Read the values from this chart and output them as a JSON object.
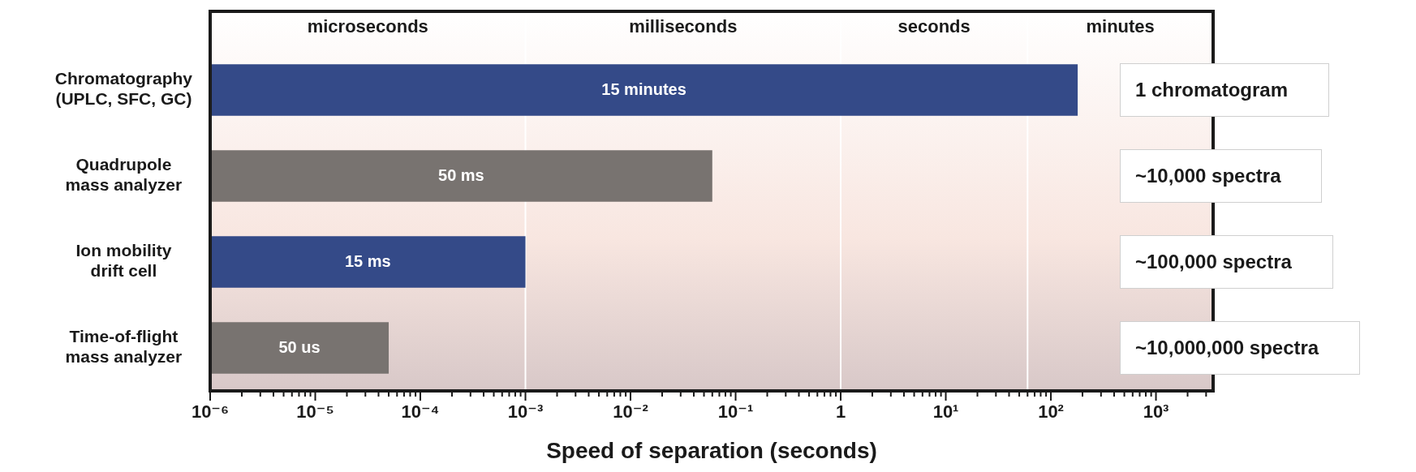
{
  "chart_data": {
    "type": "bar",
    "orientation": "horizontal",
    "log": "x",
    "categories": [
      "Chromatography\n(UPLC, SFC, GC)",
      "Quadrupole\nmass analyzer",
      "Ion mobility\ndrift cell",
      "Time-of-flight\nmass analyzer"
    ],
    "values": [
      180,
      0.06,
      0.001,
      5e-05
    ],
    "colors": [
      "#344a88",
      "#787370",
      "#344a88",
      "#787370"
    ],
    "xlabel": "Speed of separation (seconds)",
    "xlim": [
      1e-06,
      3500
    ],
    "xticks": [
      {
        "value": 1e-06,
        "label": "10⁻⁶"
      },
      {
        "value": 2e-06,
        "label": null
      },
      {
        "value": 3e-06,
        "label": null
      },
      {
        "value": 4e-06,
        "label": null
      },
      {
        "value": 5e-06,
        "label": null
      },
      {
        "value": 6e-06,
        "label": null
      },
      {
        "value": 7e-06,
        "label": null
      },
      {
        "value": 8e-06,
        "label": null
      },
      {
        "value": 9e-06,
        "label": null
      },
      {
        "value": 1e-05,
        "label": "10⁻⁵"
      },
      {
        "value": 2e-05,
        "label": null
      },
      {
        "value": 3e-05,
        "label": null
      },
      {
        "value": 4e-05,
        "label": null
      },
      {
        "value": 5e-05,
        "label": null
      },
      {
        "value": 6e-05,
        "label": null
      },
      {
        "value": 7e-05,
        "label": null
      },
      {
        "value": 8e-05,
        "label": null
      },
      {
        "value": 9e-05,
        "label": null
      },
      {
        "value": 0.0001,
        "label": "10⁻⁴"
      },
      {
        "value": 0.0002,
        "label": null
      },
      {
        "value": 0.0003,
        "label": null
      },
      {
        "value": 0.0004,
        "label": null
      },
      {
        "value": 0.0005,
        "label": null
      },
      {
        "value": 0.0006,
        "label": null
      },
      {
        "value": 0.0007,
        "label": null
      },
      {
        "value": 0.0008,
        "label": null
      },
      {
        "value": 0.0009,
        "label": null
      },
      {
        "value": 0.001,
        "label": "10⁻³"
      },
      {
        "value": 0.002,
        "label": null
      },
      {
        "value": 0.003,
        "label": null
      },
      {
        "value": 0.004,
        "label": null
      },
      {
        "value": 0.005,
        "label": null
      },
      {
        "value": 0.006,
        "label": null
      },
      {
        "value": 0.007,
        "label": null
      },
      {
        "value": 0.008,
        "label": null
      },
      {
        "value": 0.009,
        "label": null
      },
      {
        "value": 0.01,
        "label": "10⁻²"
      },
      {
        "value": 0.02,
        "label": null
      },
      {
        "value": 0.03,
        "label": null
      },
      {
        "value": 0.04,
        "label": null
      },
      {
        "value": 0.05,
        "label": null
      },
      {
        "value": 0.06,
        "label": null
      },
      {
        "value": 0.07,
        "label": null
      },
      {
        "value": 0.08,
        "label": null
      },
      {
        "value": 0.09,
        "label": null
      },
      {
        "value": 0.1,
        "label": "10⁻¹"
      },
      {
        "value": 0.2,
        "label": null
      },
      {
        "value": 0.3,
        "label": null
      },
      {
        "value": 0.4,
        "label": null
      },
      {
        "value": 0.5,
        "label": null
      },
      {
        "value": 0.6,
        "label": null
      },
      {
        "value": 0.7,
        "label": null
      },
      {
        "value": 0.8,
        "label": null
      },
      {
        "value": 0.9,
        "label": null
      },
      1,
      {
        "value": 2,
        "label": null
      },
      {
        "value": 3,
        "label": null
      },
      {
        "value": 4,
        "label": null
      },
      {
        "value": 5,
        "label": null
      },
      {
        "value": 6,
        "label": null
      },
      {
        "value": 7,
        "label": null
      },
      {
        "value": 8,
        "label": null
      },
      {
        "value": 9,
        "label": null
      },
      {
        "value": 10,
        "label": "10¹"
      },
      {
        "value": 20,
        "label": null
      },
      {
        "value": 30,
        "label": null
      },
      {
        "value": 40,
        "label": null
      },
      {
        "value": 50,
        "label": null
      },
      {
        "value": 60,
        "label": null
      },
      {
        "value": 70,
        "label": null
      },
      {
        "value": 80,
        "label": null
      },
      {
        "value": 90,
        "label": null
      },
      {
        "value": 100,
        "label": "10²"
      },
      {
        "value": 200,
        "label": null
      },
      {
        "value": 300,
        "label": null
      },
      {
        "value": 400,
        "label": null
      },
      {
        "value": 500,
        "label": null
      },
      {
        "value": 600,
        "label": null
      },
      {
        "value": 700,
        "label": null
      },
      {
        "value": 800,
        "label": null
      },
      {
        "value": 900,
        "label": null
      },
      {
        "value": 1000,
        "label": "10³"
      },
      {
        "value": 2000,
        "label": null
      },
      {
        "value": 3000,
        "label": null
      }
    ],
    "ref_lines": [
      {
        "axis": "x",
        "value": 0.001,
        "color": "#ffffff"
      },
      {
        "axis": "x",
        "value": 1,
        "color": "#ffffff"
      },
      {
        "axis": "x",
        "value": 60,
        "color": "#ffffff"
      }
    ],
    "annotations": [
      "microseconds",
      "milliseconds",
      "seconds",
      "minutes",
      "15 minutes",
      "50 ms",
      "15 ms",
      "50 us",
      "1 chromatogram",
      "~10,000 spectra",
      "~100,000 spectra",
      "~10,000,000 spectra"
    ],
    "legend": false
  }
}
